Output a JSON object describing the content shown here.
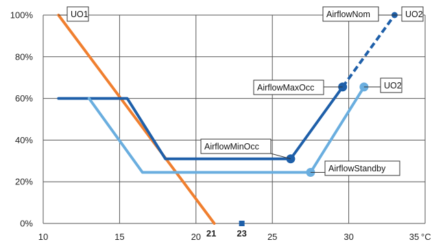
{
  "chart_data": {
    "type": "line",
    "x_range": [
      10,
      35
    ],
    "y_range": [
      0,
      100
    ],
    "x_ticks": [
      "10",
      "15",
      "20",
      "25",
      "30",
      "35"
    ],
    "x_unit": "°C",
    "y_ticks": [
      "0%",
      "20%",
      "40%",
      "60%",
      "80%",
      "100%"
    ],
    "marked_ticks": [
      {
        "x": 21,
        "label": "21"
      },
      {
        "x": 23,
        "label": "23"
      }
    ],
    "grid": true,
    "series": [
      {
        "color": "#f07f2f",
        "dashed": false,
        "points": [
          [
            11,
            100
          ],
          [
            21.2,
            0
          ]
        ]
      },
      {
        "color": "#1e5fa9",
        "dashed": false,
        "points": [
          [
            11,
            60
          ],
          [
            15.5,
            60
          ],
          [
            18,
            31
          ],
          [
            26.2,
            31
          ],
          [
            29.6,
            65.5
          ]
        ]
      },
      {
        "color": "#1e5fa9",
        "dashed": true,
        "points": [
          [
            29.6,
            65.5
          ],
          [
            33,
            100
          ]
        ]
      },
      {
        "color": "#6aaedf",
        "dashed": false,
        "points": [
          [
            13,
            60
          ],
          [
            16.5,
            24.5
          ],
          [
            27.5,
            24.5
          ],
          [
            31,
            65.5
          ]
        ]
      }
    ],
    "markers": [
      {
        "x": 26.2,
        "y": 31,
        "color": "#1e5fa9",
        "shape": "circle",
        "size": "large"
      },
      {
        "x": 29.6,
        "y": 65.5,
        "color": "#1e5fa9",
        "shape": "circle",
        "size": "large"
      },
      {
        "x": 33,
        "y": 100,
        "color": "#1e5fa9",
        "shape": "circle",
        "size": "small"
      },
      {
        "x": 27.5,
        "y": 24.5,
        "color": "#6aaedf",
        "shape": "circle",
        "size": "large"
      },
      {
        "x": 31,
        "y": 65.5,
        "color": "#6aaedf",
        "shape": "circle",
        "size": "large"
      },
      {
        "x": 23,
        "y": 0,
        "color": "#1e5fa9",
        "shape": "square",
        "size": "small"
      }
    ],
    "annotations": [
      {
        "text": "UO1",
        "target": [
          11,
          100
        ]
      },
      {
        "text": "AirflowNom",
        "target": [
          33,
          100
        ]
      },
      {
        "text": "UO2",
        "target": [
          33,
          100
        ]
      },
      {
        "text": "AirflowMaxOcc",
        "target": [
          29.6,
          65.5
        ]
      },
      {
        "text": "UO2",
        "target": [
          31,
          65.5
        ]
      },
      {
        "text": "AirflowMinOcc",
        "target": [
          26.2,
          31
        ]
      },
      {
        "text": "AirflowStandby",
        "target": [
          27.5,
          24.5
        ]
      }
    ]
  }
}
